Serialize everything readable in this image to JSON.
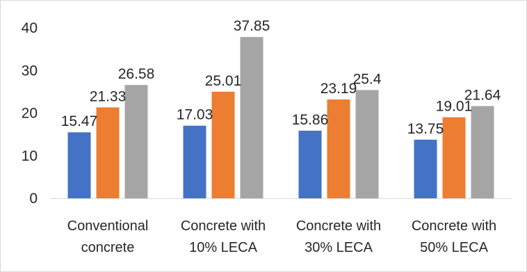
{
  "chart_data": {
    "type": "bar",
    "title": "",
    "xlabel": "",
    "ylabel": "",
    "ylim": [
      0,
      40
    ],
    "yticks": [
      0,
      10,
      20,
      30,
      40
    ],
    "grid": false,
    "legend": "none",
    "categories": [
      [
        "Conventional",
        "concrete"
      ],
      [
        "Concrete with",
        "10% LECA"
      ],
      [
        "Concrete with",
        "30% LECA"
      ],
      [
        "Concrete with",
        "50% LECA"
      ]
    ],
    "series": [
      {
        "color": "#4472c4",
        "values": [
          15.47,
          17.03,
          15.86,
          13.75
        ],
        "labels": [
          "15.47",
          "17.03",
          "15.86",
          "13.75"
        ]
      },
      {
        "color": "#ed7d31",
        "values": [
          21.33,
          25.01,
          23.19,
          19.01
        ],
        "labels": [
          "21.33",
          "25.01",
          "23.19",
          "19.01"
        ]
      },
      {
        "color": "#a5a5a5",
        "values": [
          26.58,
          37.85,
          25.4,
          21.64
        ],
        "labels": [
          "26.58",
          "37.85",
          "25.4",
          "21.64"
        ]
      }
    ]
  }
}
